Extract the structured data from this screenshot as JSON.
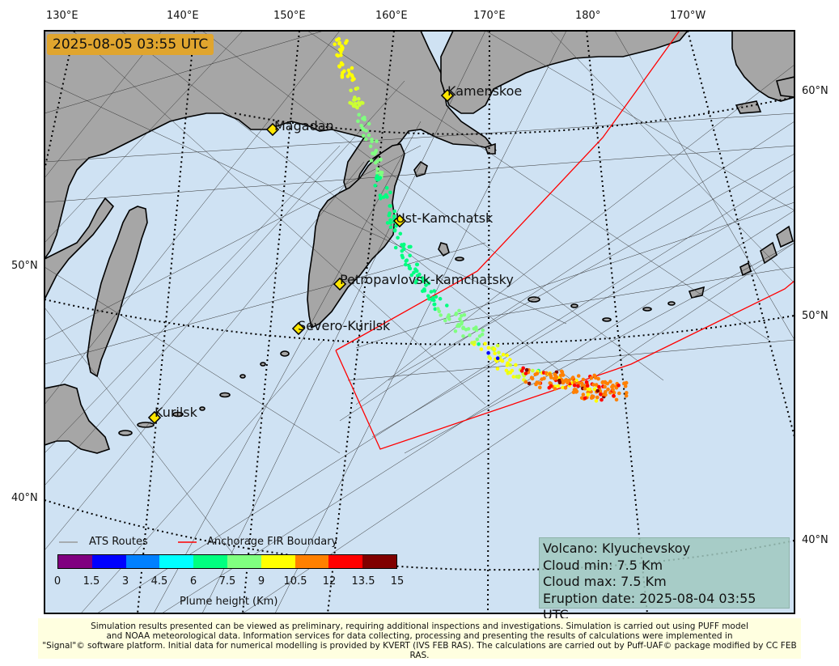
{
  "timestamp": "2025-08-05 03:55 UTC",
  "lon_labels_top": [
    "130°E",
    "140°E",
    "150°E",
    "160°E",
    "170°E",
    "180°",
    "170°W"
  ],
  "lat_labels_left": [
    "50°N",
    "40°N"
  ],
  "lat_labels_right": [
    "60°N",
    "50°N",
    "40°N"
  ],
  "cities": [
    {
      "name": "Kamenskoe"
    },
    {
      "name": "Magadan"
    },
    {
      "name": "Ust-Kamchatsk"
    },
    {
      "name": "Petropavlovsk-Kamchatsky"
    },
    {
      "name": "Severo-Kurilsk"
    },
    {
      "name": "Kurilsk"
    }
  ],
  "legend": {
    "ats_routes": "ATS Routes",
    "fir_boundary": "Anchorage FIR Boundary"
  },
  "colorbar": {
    "title": "Plume height (Km)",
    "ticks": [
      "0",
      "1.5",
      "3",
      "4.5",
      "6",
      "7.5",
      "9",
      "10.5",
      "12",
      "13.5",
      "15"
    ],
    "colors": [
      "#800080",
      "#0000ff",
      "#0080ff",
      "#00ffff",
      "#00ff80",
      "#80ff80",
      "#ffff00",
      "#ff8000",
      "#ff0000",
      "#800000"
    ]
  },
  "info": {
    "volcano": "Volcano: Klyuchevskoy",
    "cloud_min": "Cloud min: 7.5 Km",
    "cloud_max": "Cloud max: 7.5 Km",
    "eruption_date": "Eruption date: 2025-08-04 03:55 UTC"
  },
  "footer": {
    "line1": "Simulation results presented can be viewed as preliminary, requiring additional inspections and investigations. Simulation is carried out using PUFF model",
    "line2": "and NOAA meteorological data. Information services for data collecting, processing and presenting the results of calculations were implemented in",
    "line3": "\"Signal\"© software platform. Initial data for numerical modelling is provided by KVERT (IVS FEB RAS). The calculations are carried out by Puff-UAF© package modified by CC FEB RAS."
  },
  "colors": {
    "ocean": "#cfe2f3",
    "land": "#a6a6a6",
    "fir": "#ff0000",
    "timestamp_bg": "#e0a52e",
    "footer_bg": "#ffffe0"
  }
}
